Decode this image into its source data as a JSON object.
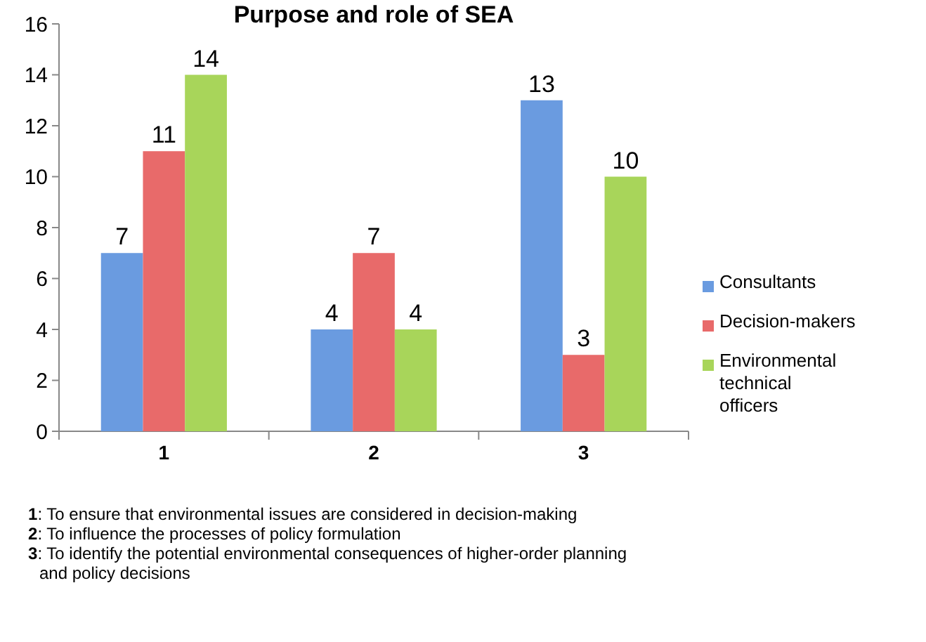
{
  "chart_data": {
    "type": "bar",
    "title": "Purpose and role of SEA",
    "categories": [
      "1",
      "2",
      "3"
    ],
    "series": [
      {
        "name": "Consultants",
        "color": "#6a9be0",
        "values": [
          7,
          4,
          13
        ]
      },
      {
        "name": "Decision-makers",
        "color": "#e86a6a",
        "values": [
          11,
          7,
          3
        ]
      },
      {
        "name": "Environmental technical officers",
        "color": "#a8d55a",
        "values": [
          14,
          4,
          10
        ]
      }
    ],
    "ylim": [
      0,
      16
    ],
    "yticks": [
      0,
      2,
      4,
      6,
      8,
      10,
      12,
      14,
      16
    ],
    "data_labels": true,
    "legend": "right",
    "annotations": [
      "1: To ensure that environmental issues are considered in decision-making",
      "2: To influence the processes of policy formulation",
      "3: To identify the potential environmental consequences of higher-order planning and policy decisions"
    ]
  }
}
